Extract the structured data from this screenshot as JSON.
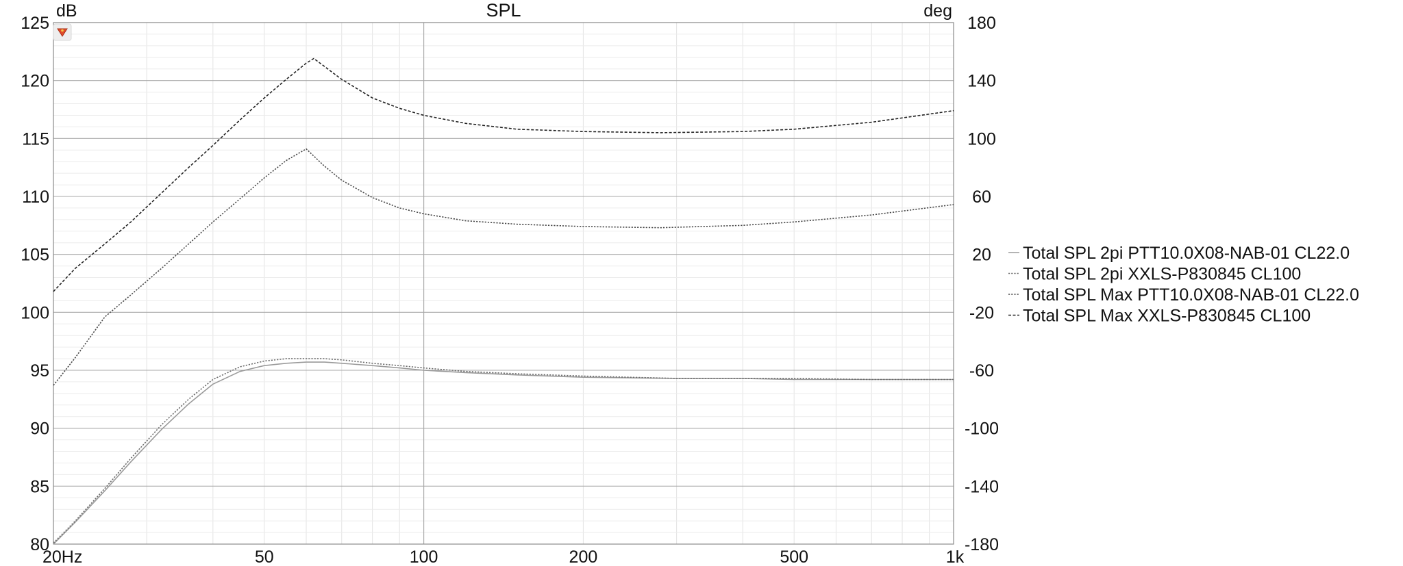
{
  "chart_data": {
    "type": "line",
    "title": "SPL",
    "y_left_unit": "dB",
    "y_right_unit": "deg",
    "x_scale": "log",
    "xlim": [
      20,
      1000
    ],
    "ylim": [
      80,
      125
    ],
    "y2lim": [
      -180,
      180
    ],
    "x_ticks": [
      {
        "value": 20,
        "label": "20Hz"
      },
      {
        "value": 50,
        "label": "50"
      },
      {
        "value": 100,
        "label": "100"
      },
      {
        "value": 200,
        "label": "200"
      },
      {
        "value": 500,
        "label": "500"
      },
      {
        "value": 1000,
        "label": "1k"
      }
    ],
    "y_ticks": [
      {
        "value": 125,
        "label": "125"
      },
      {
        "value": 120,
        "label": "120"
      },
      {
        "value": 115,
        "label": "115"
      },
      {
        "value": 110,
        "label": "110"
      },
      {
        "value": 105,
        "label": "105"
      },
      {
        "value": 100,
        "label": "100"
      },
      {
        "value": 95,
        "label": "95"
      },
      {
        "value": 90,
        "label": "90"
      },
      {
        "value": 85,
        "label": "85"
      },
      {
        "value": 80,
        "label": "80"
      }
    ],
    "y2_ticks": [
      {
        "value": 180,
        "label": "180"
      },
      {
        "value": 140,
        "label": "140"
      },
      {
        "value": 100,
        "label": "100"
      },
      {
        "value": 60,
        "label": "60"
      },
      {
        "value": 20,
        "label": "20"
      },
      {
        "value": -20,
        "label": "-20"
      },
      {
        "value": -60,
        "label": "-60"
      },
      {
        "value": -100,
        "label": "-100"
      },
      {
        "value": -140,
        "label": "-140"
      },
      {
        "value": -180,
        "label": "-180"
      }
    ],
    "grid": true,
    "legend_position": "right",
    "series": [
      {
        "name": "Total SPL 2pi PTT10.0X08-NAB-01 CL22.0",
        "color": "#9a9a9a",
        "dash": "solid",
        "x": [
          20,
          22,
          25,
          28,
          32,
          36,
          40,
          45,
          50,
          55,
          60,
          65,
          70,
          80,
          90,
          100,
          120,
          150,
          200,
          300,
          400,
          500,
          700,
          1000
        ],
        "y": [
          80,
          81.9,
          84.6,
          87.1,
          89.9,
          92.1,
          93.8,
          94.9,
          95.4,
          95.6,
          95.7,
          95.7,
          95.6,
          95.4,
          95.2,
          95.0,
          94.8,
          94.6,
          94.4,
          94.3,
          94.3,
          94.2,
          94.2,
          94.2
        ]
      },
      {
        "name": "Total SPL 2pi XXLS-P830845 CL100",
        "color": "#6f6f6f",
        "dash": "dot",
        "x": [
          20,
          22,
          25,
          28,
          32,
          36,
          40,
          45,
          50,
          55,
          60,
          65,
          70,
          80,
          90,
          100,
          120,
          150,
          200,
          300,
          400,
          500,
          700,
          1000
        ],
        "y": [
          80.1,
          82.0,
          84.8,
          87.4,
          90.3,
          92.5,
          94.2,
          95.3,
          95.8,
          96.0,
          96.0,
          96.0,
          95.9,
          95.6,
          95.4,
          95.2,
          94.9,
          94.7,
          94.5,
          94.3,
          94.3,
          94.3,
          94.2,
          94.2
        ]
      },
      {
        "name": "Total SPL Max PTT10.0X08-NAB-01 CL22.0",
        "color": "#4a4a4a",
        "dash": "dot",
        "x": [
          20,
          22,
          25,
          28,
          32,
          36,
          40,
          45,
          50,
          55,
          60,
          65,
          70,
          80,
          90,
          100,
          120,
          150,
          200,
          280,
          400,
          500,
          700,
          1000
        ],
        "y": [
          93.7,
          96.1,
          99.6,
          101.5,
          103.8,
          105.9,
          107.8,
          109.8,
          111.6,
          113.1,
          114.1,
          112.6,
          111.4,
          109.9,
          109.0,
          108.5,
          107.9,
          107.6,
          107.4,
          107.3,
          107.5,
          107.8,
          108.4,
          109.3
        ]
      },
      {
        "name": "Total SPL Max XXLS-P830845 CL100",
        "color": "#222222",
        "dash": "dash",
        "x": [
          20,
          22,
          25,
          28,
          32,
          36,
          40,
          45,
          50,
          55,
          60,
          62,
          65,
          70,
          80,
          90,
          100,
          120,
          150,
          200,
          280,
          400,
          500,
          700,
          1000
        ],
        "y": [
          101.8,
          103.8,
          105.9,
          107.8,
          110.3,
          112.5,
          114.4,
          116.6,
          118.5,
          120.1,
          121.5,
          121.9,
          121.2,
          120.1,
          118.5,
          117.6,
          117.0,
          116.3,
          115.8,
          115.6,
          115.5,
          115.6,
          115.8,
          116.4,
          117.4
        ]
      }
    ]
  }
}
